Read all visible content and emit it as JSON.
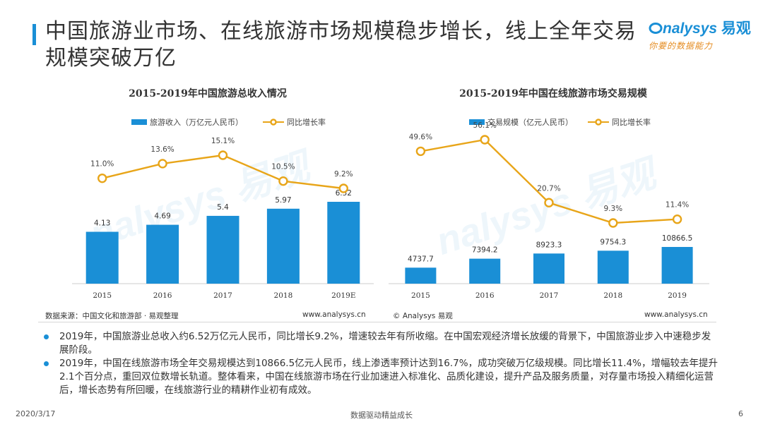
{
  "page": {
    "title": "中国旅游业市场、在线旅游市场规模稳步增长，线上全年交易规模突破万亿",
    "logo_text": "nalysys",
    "logo_cn": "易观",
    "logo_slogan": "你要的数据能力",
    "watermark_text": "nalysys 易观"
  },
  "chart_data": [
    {
      "type": "bar",
      "title": "2015-2019年中国旅游总收入情况",
      "categories": [
        "2015",
        "2016",
        "2017",
        "2018",
        "2019E"
      ],
      "series": [
        {
          "name": "旅游收入（万亿元人民币）",
          "type": "bar",
          "values": [
            4.13,
            4.69,
            5.4,
            5.97,
            6.52
          ],
          "labels": [
            "4.13",
            "4.69",
            "5.4",
            "5.97",
            "6.52"
          ]
        },
        {
          "name": "同比增长率",
          "type": "line",
          "values": [
            11.0,
            13.6,
            15.1,
            10.5,
            9.2
          ],
          "labels": [
            "11.0%",
            "13.6%",
            "15.1%",
            "10.5%",
            "9.2%"
          ]
        }
      ],
      "legend_position": "top",
      "grid": false,
      "source": "数据来源：中国文化和旅游部 · 易观整理",
      "url": "www.analysys.cn"
    },
    {
      "type": "bar",
      "title": "2015-2019年中国在线旅游市场交易规模",
      "categories": [
        "2015",
        "2016",
        "2017",
        "2018",
        "2019"
      ],
      "series": [
        {
          "name": "交易规模（亿元人民币）",
          "type": "bar",
          "values": [
            4737.7,
            7394.2,
            8923.3,
            9754.3,
            10866.5
          ],
          "labels": [
            "4737.7",
            "7394.2",
            "8923.3",
            "9754.3",
            "10866.5"
          ]
        },
        {
          "name": "同比增长率",
          "type": "line",
          "values": [
            49.6,
            56.1,
            20.7,
            9.3,
            11.4
          ],
          "labels": [
            "49.6%",
            "56.1%",
            "20.7%",
            "9.3%",
            "11.4%"
          ]
        }
      ],
      "legend_position": "top",
      "grid": false,
      "source": "© Analysys 易观",
      "url": "www.analysys.cn"
    }
  ],
  "bullets": [
    "2019年，中国旅游业总收入约6.52万亿元人民币，同比增长9.2%，增速较去年有所收缩。在中国宏观经济增长放缓的背景下，中国旅游业步入中速稳步发展阶段。",
    "2019年，中国在线旅游市场全年交易规模达到10866.5亿元人民币，线上渗透率预计达到16.7%，成功突破万亿级规模。同比增长11.4%，增幅较去年提升2.1个百分点，重回双位数增长轨道。整体看来，中国在线旅游市场在行业加速进入标准化、品质化建设，提升产品及服务质量，对存量市场投入精细化运营后，增长态势有所回暖，在线旅游行业的精耕作业初有成效。"
  ],
  "footer": {
    "date": "2020/3/17",
    "slogan": "数据驱动精益成长",
    "page": "6"
  },
  "colors": {
    "accent": "#1a8fd6",
    "line": "#e8a519",
    "logo_sub": "#e58b1f"
  }
}
